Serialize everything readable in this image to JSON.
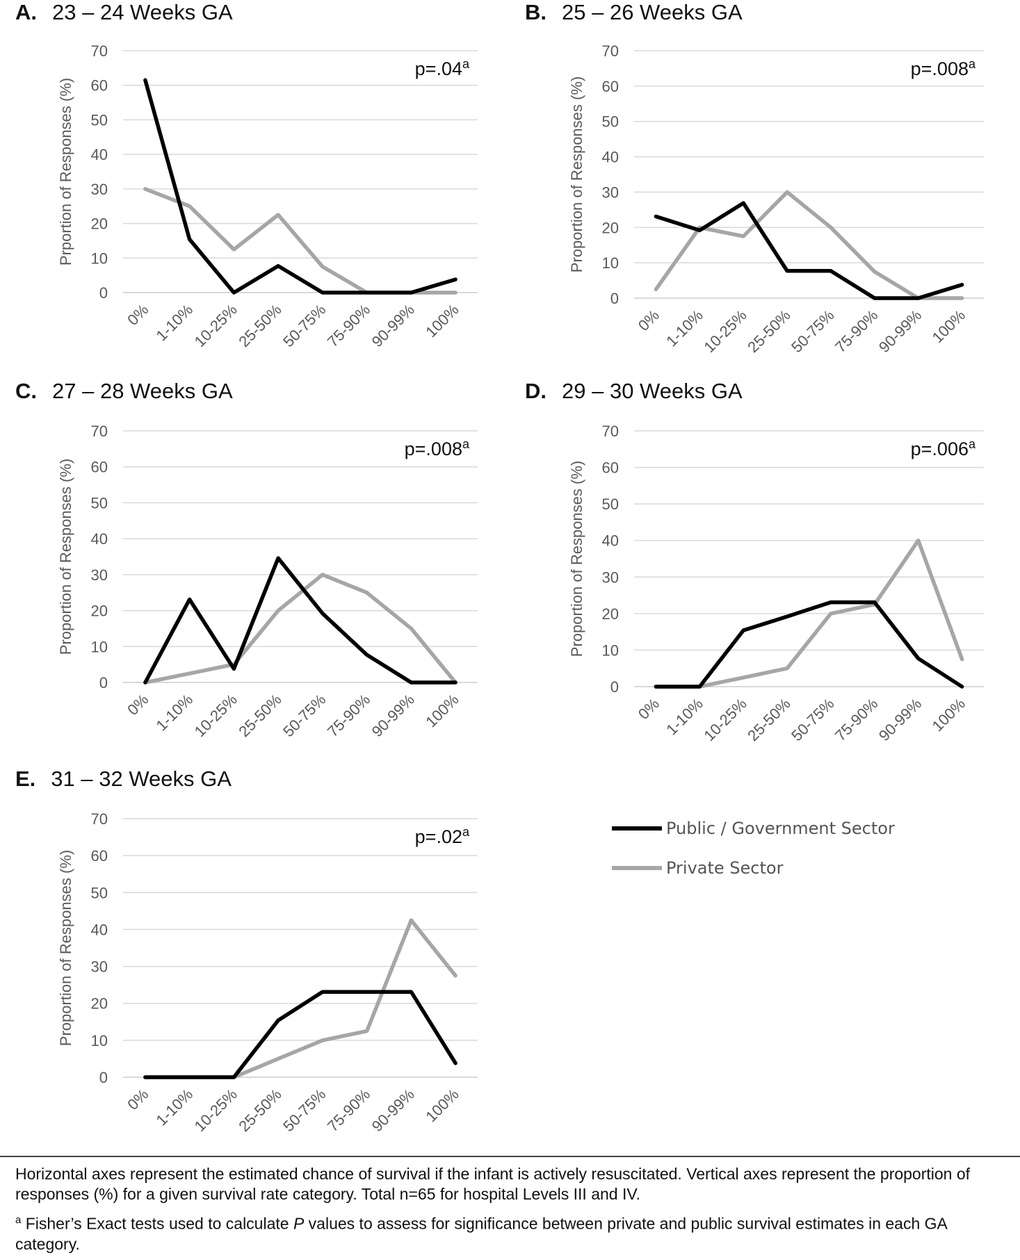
{
  "chart_data": [
    {
      "type": "line",
      "panel_label": "A.",
      "title": "23 – 24 Weeks GA",
      "ylabel": "Prportion of Responses (%)",
      "xlabel": "",
      "categories": [
        "0%",
        "1-10%",
        "10-25%",
        "25-50%",
        "50-75%",
        "75-90%",
        "90-99%",
        "100%"
      ],
      "ylim": [
        0,
        70
      ],
      "yticks": [
        0,
        10,
        20,
        30,
        40,
        50,
        60,
        70
      ],
      "grid": true,
      "annotation": {
        "text": "p=.04",
        "superscript": "a"
      },
      "series": [
        {
          "name": "Public / Government Sector",
          "color": "#000000",
          "values": [
            61.5,
            15.4,
            0,
            7.7,
            0,
            0,
            0,
            3.8
          ]
        },
        {
          "name": "Private Sector",
          "color": "#a6a6a6",
          "values": [
            30,
            25,
            12.5,
            22.5,
            7.5,
            0,
            0,
            0
          ]
        }
      ]
    },
    {
      "type": "line",
      "panel_label": "B.",
      "title": "25 – 26 Weeks GA",
      "ylabel": "Proportion of Responses (%)",
      "xlabel": "",
      "categories": [
        "0%",
        "1-10%",
        "10-25%",
        "25-50%",
        "50-75%",
        "75-90%",
        "90-99%",
        "100%"
      ],
      "ylim": [
        0,
        70
      ],
      "yticks": [
        0,
        10,
        20,
        30,
        40,
        50,
        60,
        70
      ],
      "grid": true,
      "annotation": {
        "text": "p=.008",
        "superscript": "a"
      },
      "series": [
        {
          "name": "Public / Government Sector",
          "color": "#000000",
          "values": [
            23.1,
            19.2,
            26.9,
            7.7,
            7.7,
            0,
            0,
            3.8
          ]
        },
        {
          "name": "Private Sector",
          "color": "#a6a6a6",
          "values": [
            2.5,
            20,
            17.5,
            30,
            20,
            7.5,
            0,
            0
          ]
        }
      ]
    },
    {
      "type": "line",
      "panel_label": "C.",
      "title": "27 – 28 Weeks GA",
      "ylabel": "Proportion of Responses (%)",
      "xlabel": "",
      "categories": [
        "0%",
        "1-10%",
        "10-25%",
        "25-50%",
        "50-75%",
        "75-90%",
        "90-99%",
        "100%"
      ],
      "ylim": [
        0,
        70
      ],
      "yticks": [
        0,
        10,
        20,
        30,
        40,
        50,
        60,
        70
      ],
      "grid": true,
      "annotation": {
        "text": "p=.008",
        "superscript": "a"
      },
      "series": [
        {
          "name": "Public / Government Sector",
          "color": "#000000",
          "values": [
            0,
            23.1,
            3.8,
            34.6,
            19.2,
            7.7,
            0,
            0
          ]
        },
        {
          "name": "Private Sector",
          "color": "#a6a6a6",
          "values": [
            0,
            2.5,
            5,
            20,
            30,
            25,
            15,
            0
          ]
        }
      ]
    },
    {
      "type": "line",
      "panel_label": "D.",
      "title": "29 – 30 Weeks GA",
      "ylabel": "Proportion of Responses (%)",
      "xlabel": "",
      "categories": [
        "0%",
        "1-10%",
        "10-25%",
        "25-50%",
        "50-75%",
        "75-90%",
        "90-99%",
        "100%"
      ],
      "ylim": [
        0,
        70
      ],
      "yticks": [
        0,
        10,
        20,
        30,
        40,
        50,
        60,
        70
      ],
      "grid": true,
      "annotation": {
        "text": "p=.006",
        "superscript": "a"
      },
      "series": [
        {
          "name": "Public / Government Sector",
          "color": "#000000",
          "values": [
            0,
            0,
            15.4,
            19.2,
            23.1,
            23.1,
            7.7,
            0
          ]
        },
        {
          "name": "Private Sector",
          "color": "#a6a6a6",
          "values": [
            0,
            0,
            2.5,
            5,
            20,
            22.5,
            40,
            7.5
          ]
        }
      ]
    },
    {
      "type": "line",
      "panel_label": "E.",
      "title": "31 – 32 Weeks GA",
      "ylabel": "Proportion of Responses (%)",
      "xlabel": "",
      "categories": [
        "0%",
        "1-10%",
        "10-25%",
        "25-50%",
        "50-75%",
        "75-90%",
        "90-99%",
        "100%"
      ],
      "ylim": [
        0,
        70
      ],
      "yticks": [
        0,
        10,
        20,
        30,
        40,
        50,
        60,
        70
      ],
      "grid": true,
      "annotation": {
        "text": "p=.02",
        "superscript": "a"
      },
      "series": [
        {
          "name": "Public / Government Sector",
          "color": "#000000",
          "values": [
            0,
            0,
            0,
            15.4,
            23.1,
            23.1,
            23.1,
            3.8
          ]
        },
        {
          "name": "Private Sector",
          "color": "#a6a6a6",
          "values": [
            0,
            0,
            0,
            5,
            10,
            12.5,
            42.5,
            27.5
          ]
        }
      ]
    }
  ],
  "legend": {
    "items": [
      {
        "label": "Public / Government Sector",
        "color": "#000000"
      },
      {
        "label": "Private Sector",
        "color": "#a6a6a6"
      }
    ]
  },
  "colors": {
    "grid": "#d9d9d9",
    "tick_text": "#595959"
  },
  "footnote": {
    "line1": "Horizontal axes represent the estimated chance of survival if the infant is actively resuscitated. Vertical axes represent the proportion of responses (%) for a given survival rate category. Total n=65 for hospital Levels III and IV.",
    "marker": "a",
    "line2_before": " Fisher’s Exact tests used to calculate ",
    "line2_italic": "P",
    "line2_after": " values to assess for significance between private and public survival estimates in each GA category."
  }
}
